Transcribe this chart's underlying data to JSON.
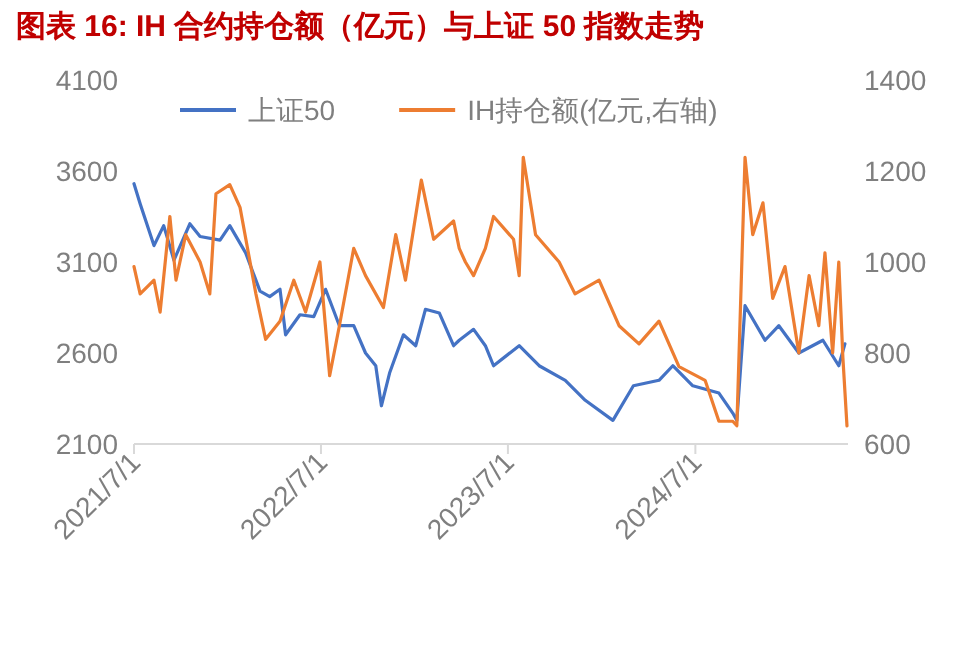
{
  "chart_data": {
    "type": "line",
    "title": "图表 16:   IH 合约持仓额（亿元）与上证 50 指数走势",
    "xlim": [
      "2021-07-01",
      "2025-04-25"
    ],
    "xticks": [
      {
        "value": "2021-07-01",
        "label": "2021/7/1"
      },
      {
        "value": "2022-07-01",
        "label": "2022/7/1"
      },
      {
        "value": "2023-07-01",
        "label": "2023/7/1"
      },
      {
        "value": "2024-07-01",
        "label": "2024/7/1"
      }
    ],
    "ylim": [
      2100,
      4100
    ],
    "yticks": [
      2100,
      2600,
      3100,
      3600,
      4100
    ],
    "y2lim": [
      600,
      1400
    ],
    "y2ticks": [
      600,
      800,
      1000,
      1200,
      1400
    ],
    "legend": "top",
    "grid": false,
    "series": [
      {
        "name": "上证50",
        "color": "#4472c4",
        "x": [
          "2021-07-01",
          "2021-07-13",
          "2021-08-09",
          "2021-08-28",
          "2021-09-17",
          "2021-10-18",
          "2021-11-07",
          "2021-12-16",
          "2022-01-04",
          "2022-02-04",
          "2022-03-04",
          "2022-03-23",
          "2022-04-12",
          "2022-04-23",
          "2022-05-21",
          "2022-06-17",
          "2022-07-10",
          "2022-08-06",
          "2022-09-03",
          "2022-09-26",
          "2022-10-16",
          "2022-10-27",
          "2022-11-12",
          "2022-12-09",
          "2023-01-02",
          "2023-01-21",
          "2023-02-17",
          "2023-03-17",
          "2023-03-28",
          "2023-04-25",
          "2023-05-18",
          "2023-06-03",
          "2023-07-23",
          "2023-08-31",
          "2023-10-21",
          "2023-11-29",
          "2024-01-22",
          "2024-03-02",
          "2024-04-21",
          "2024-05-18",
          "2024-06-26",
          "2024-08-16",
          "2024-09-12",
          "2024-09-20",
          "2024-10-06",
          "2024-11-14",
          "2024-12-11",
          "2025-01-19",
          "2025-03-07",
          "2025-04-07",
          "2025-04-19"
        ],
        "values": [
          3530,
          3420,
          3190,
          3300,
          3110,
          3310,
          3240,
          3220,
          3300,
          3150,
          2940,
          2910,
          2950,
          2700,
          2810,
          2800,
          2950,
          2750,
          2750,
          2600,
          2530,
          2310,
          2490,
          2700,
          2640,
          2840,
          2820,
          2640,
          2670,
          2730,
          2640,
          2530,
          2640,
          2530,
          2450,
          2340,
          2230,
          2420,
          2450,
          2530,
          2420,
          2380,
          2270,
          2230,
          2860,
          2670,
          2750,
          2600,
          2670,
          2530,
          2650
        ]
      },
      {
        "name": "IH持仓额(亿元,右轴)",
        "color": "#ed7d31",
        "axis": "y2",
        "x": [
          "2021-07-01",
          "2021-07-13",
          "2021-08-09",
          "2021-08-21",
          "2021-09-09",
          "2021-09-21",
          "2021-10-10",
          "2021-11-07",
          "2021-11-26",
          "2021-12-08",
          "2022-01-04",
          "2022-01-24",
          "2022-02-24",
          "2022-03-15",
          "2022-04-12",
          "2022-05-09",
          "2022-06-01",
          "2022-06-29",
          "2022-07-18",
          "2022-08-06",
          "2022-09-03",
          "2022-09-26",
          "2022-10-31",
          "2022-11-24",
          "2022-12-13",
          "2023-01-13",
          "2023-02-06",
          "2023-03-17",
          "2023-03-28",
          "2023-04-09",
          "2023-04-25",
          "2023-05-18",
          "2023-06-03",
          "2023-07-12",
          "2023-07-23",
          "2023-07-31",
          "2023-08-24",
          "2023-10-09",
          "2023-11-09",
          "2023-12-26",
          "2024-02-03",
          "2024-03-13",
          "2024-04-21",
          "2024-05-30",
          "2024-07-20",
          "2024-08-16",
          "2024-09-12",
          "2024-09-20",
          "2024-10-06",
          "2024-10-21",
          "2024-11-10",
          "2024-11-29",
          "2024-12-23",
          "2025-01-19",
          "2025-02-08",
          "2025-02-27",
          "2025-03-11",
          "2025-03-26",
          "2025-04-07",
          "2025-04-15",
          "2025-04-23"
        ],
        "values": [
          990,
          930,
          960,
          890,
          1100,
          960,
          1060,
          1000,
          930,
          1150,
          1170,
          1120,
          930,
          830,
          870,
          960,
          890,
          1000,
          750,
          860,
          1030,
          970,
          900,
          1060,
          960,
          1180,
          1050,
          1090,
          1030,
          1000,
          970,
          1030,
          1100,
          1050,
          970,
          1230,
          1060,
          1000,
          930,
          960,
          860,
          820,
          870,
          770,
          740,
          650,
          650,
          640,
          1230,
          1060,
          1130,
          920,
          990,
          800,
          970,
          860,
          1020,
          800,
          1000,
          790,
          640
        ]
      }
    ]
  }
}
